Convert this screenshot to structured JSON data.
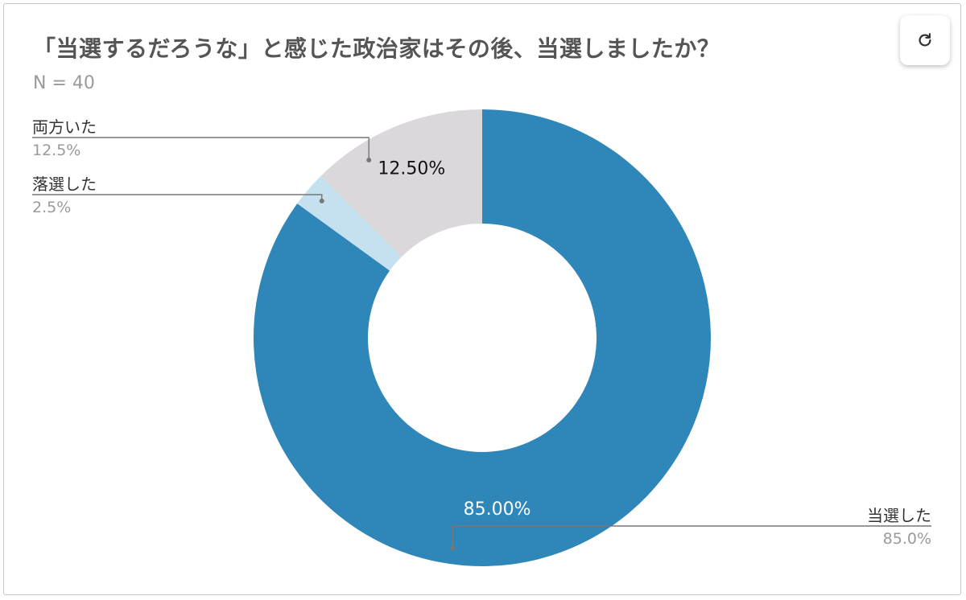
{
  "header": {
    "title": "「当選するだろうな」と感じた政治家はその後、当選しましたか？",
    "subtitle": "N = 40"
  },
  "toolbar": {
    "refresh_icon": "refresh-icon"
  },
  "colors": {
    "won": "#2e86b9",
    "lost": "#c5e0ee",
    "both": "#dad8db",
    "leader": "#777777",
    "label": "#333333",
    "value": "#9a9a9a"
  },
  "chart_data": {
    "type": "pie",
    "donut": true,
    "title": "「当選するだろうな」と感じた政治家はその後、当選しましたか？",
    "subtitle": "N = 40",
    "slices": [
      {
        "label": "当選した",
        "value": 85.0,
        "display_pct": "85.0%",
        "inner_label": "85.00%"
      },
      {
        "label": "落選した",
        "value": 2.5,
        "display_pct": "2.5%",
        "inner_label": ""
      },
      {
        "label": "両方いた",
        "value": 12.5,
        "display_pct": "12.5%",
        "inner_label": "12.50%"
      }
    ]
  }
}
